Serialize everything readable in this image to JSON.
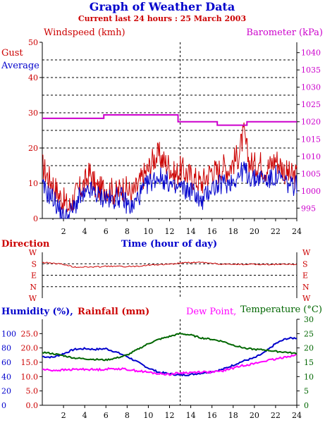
{
  "header": {
    "title": "Graph of Weather Data",
    "subtitle": "Current last 24 hours : 25 March 2003"
  },
  "colors": {
    "windspeed": "#cc0000",
    "average": "#0000cc",
    "barometer": "#cc00cc",
    "direction": "#cc0000",
    "humidity": "#0000cc",
    "rainfall": "#cc0000",
    "dewpoint": "#ff00ff",
    "temperature": "#006600",
    "axis": "#000000"
  },
  "chart_data": [
    {
      "type": "line",
      "title": "",
      "xlabel": "Time (hour of day)",
      "ylabel_left": "Windspeed (kmh)",
      "ylabel_right": "Barometer (kPa)",
      "legend_left": [
        "Gust",
        "Average"
      ],
      "xlim": [
        0,
        24
      ],
      "ylim_left": [
        0,
        50
      ],
      "ylim_right": [
        992,
        1043
      ],
      "x_ticks": [
        2,
        4,
        6,
        8,
        10,
        12,
        14,
        16,
        18,
        20,
        22,
        24
      ],
      "y_ticks_left": [
        0,
        10,
        20,
        30,
        40,
        50
      ],
      "y_ticks_right": [
        995,
        1000,
        1005,
        1010,
        1015,
        1020,
        1025,
        1030,
        1035,
        1040
      ],
      "gridlines": "dashed horizontal every 5 kmh",
      "marker_hour": 13,
      "series": [
        {
          "name": "Gust",
          "x": [
            0,
            0.5,
            1,
            1.5,
            2,
            2.5,
            3,
            3.5,
            4,
            4.5,
            5,
            5.5,
            6,
            6.5,
            7,
            7.5,
            8,
            8.5,
            9,
            9.5,
            10,
            10.5,
            11,
            11.5,
            12,
            12.5,
            13,
            13.5,
            14,
            14.5,
            15,
            15.5,
            16,
            16.5,
            17,
            17.5,
            18,
            18.5,
            19,
            19.5,
            20,
            20.5,
            21,
            21.5,
            22,
            22.5,
            23,
            23.5,
            24
          ],
          "values": [
            15,
            12,
            10,
            7,
            5,
            3,
            6,
            8,
            10,
            13,
            9,
            8,
            9,
            8,
            7,
            9,
            8,
            7,
            9,
            12,
            14,
            17,
            18,
            16,
            15,
            12,
            14,
            13,
            12,
            11,
            10,
            12,
            14,
            13,
            15,
            14,
            16,
            18,
            24,
            16,
            15,
            16,
            14,
            15,
            17,
            15,
            13,
            12,
            12
          ]
        },
        {
          "name": "Average",
          "x": [
            0,
            0.5,
            1,
            1.5,
            2,
            2.5,
            3,
            3.5,
            4,
            4.5,
            5,
            5.5,
            6,
            6.5,
            7,
            7.5,
            8,
            8.5,
            9,
            9.5,
            10,
            10.5,
            11,
            11.5,
            12,
            12.5,
            13,
            13.5,
            14,
            14.5,
            15,
            15.5,
            16,
            16.5,
            17,
            17.5,
            18,
            18.5,
            19,
            19.5,
            20,
            20.5,
            21,
            21.5,
            22,
            22.5,
            23,
            23.5,
            24
          ],
          "values": [
            9,
            7,
            6,
            3,
            0,
            1,
            3,
            6,
            6,
            8,
            7,
            6,
            6,
            5,
            6,
            6,
            4,
            3,
            6,
            8,
            10,
            11,
            12,
            11,
            10,
            8,
            9,
            8,
            8,
            7,
            4,
            7,
            9,
            9,
            10,
            10,
            11,
            12,
            14,
            12,
            11,
            12,
            11,
            11,
            12,
            11,
            10,
            9,
            10
          ]
        },
        {
          "name": "Barometer",
          "axis": "right",
          "x": [
            0,
            5.2,
            5.8,
            11.2,
            12.8,
            15,
            16.5,
            18.8,
            19.3,
            20.8,
            22,
            24
          ],
          "values": [
            1021,
            1021,
            1022,
            1022,
            1020,
            1020,
            1019,
            1019,
            1020,
            1020,
            1020,
            1020
          ]
        }
      ]
    },
    {
      "type": "line",
      "title": "",
      "ylabel_left": "Direction",
      "categories_y": [
        "W",
        "S",
        "E",
        "N",
        "W"
      ],
      "xlim": [
        0,
        24
      ],
      "marker_hour": 13,
      "series": [
        {
          "name": "Direction",
          "x": [
            0,
            1,
            2,
            3,
            4,
            5,
            6,
            7,
            8,
            9,
            10,
            11,
            12,
            13,
            14,
            15,
            16,
            17,
            18,
            19,
            20,
            21,
            22,
            23,
            24
          ],
          "values": [
            80,
            85,
            95,
            115,
            115,
            115,
            110,
            110,
            112,
            108,
            100,
            97,
            95,
            85,
            80,
            80,
            85,
            95,
            95,
            95,
            95,
            95,
            95,
            95,
            95
          ]
        }
      ]
    },
    {
      "type": "line",
      "title": "",
      "legend": [
        "Humidity (%),",
        "Rainfall (mm)",
        "Dew Point,",
        "Temperature (°C)"
      ],
      "xlim": [
        0,
        24
      ],
      "ylim_humidity": [
        0,
        120
      ],
      "ylim_rainfall": [
        0,
        30
      ],
      "ylim_temperature": [
        0,
        30
      ],
      "y_ticks_humidity": [
        0,
        20,
        40,
        60,
        80,
        100
      ],
      "y_ticks_rainfall": [
        "0.0",
        "5.0",
        "10.0",
        "15.0",
        "20.0",
        "25.0"
      ],
      "y_ticks_temperature": [
        0,
        5,
        10,
        15,
        20,
        25,
        30
      ],
      "x_ticks": [
        2,
        4,
        6,
        8,
        10,
        12,
        14,
        16,
        18,
        20,
        22,
        24
      ],
      "marker_hour": 13,
      "series": [
        {
          "name": "Humidity",
          "x": [
            0,
            1,
            2,
            3,
            4,
            5,
            6,
            7,
            8,
            9,
            10,
            11,
            12,
            13,
            14,
            15,
            16,
            17,
            18,
            19,
            20,
            21,
            22,
            23,
            24
          ],
          "values": [
            68,
            67,
            72,
            78,
            79,
            78,
            79,
            74,
            68,
            60,
            52,
            46,
            44,
            42,
            43,
            45,
            47,
            50,
            56,
            62,
            66,
            74,
            86,
            93,
            94
          ]
        },
        {
          "name": "Dew Point",
          "x": [
            0,
            1,
            2,
            3,
            4,
            5,
            6,
            7,
            8,
            9,
            10,
            11,
            12,
            13,
            14,
            15,
            16,
            17,
            18,
            19,
            20,
            21,
            22,
            23,
            24
          ],
          "values": [
            12.5,
            12.2,
            12.3,
            12.5,
            12.6,
            12.4,
            12.6,
            12.8,
            12.5,
            12.0,
            11.5,
            11.0,
            10.8,
            11.3,
            11.4,
            11.7,
            11.5,
            12.0,
            13.0,
            14.0,
            14.5,
            15.5,
            16.0,
            17.0,
            17.5
          ]
        },
        {
          "name": "Temperature",
          "x": [
            0,
            1,
            2,
            3,
            4,
            5,
            6,
            7,
            8,
            9,
            10,
            11,
            12,
            13,
            14,
            15,
            16,
            17,
            18,
            19,
            20,
            21,
            22,
            23,
            24
          ],
          "values": [
            18.5,
            18.0,
            17.3,
            16.5,
            16.2,
            16.0,
            15.8,
            16.5,
            17.5,
            19.5,
            21.5,
            23.0,
            24.0,
            25.0,
            24.5,
            23.5,
            23.0,
            22.3,
            21.0,
            20.0,
            19.5,
            19.3,
            18.8,
            18.5,
            18.0
          ]
        }
      ]
    }
  ]
}
